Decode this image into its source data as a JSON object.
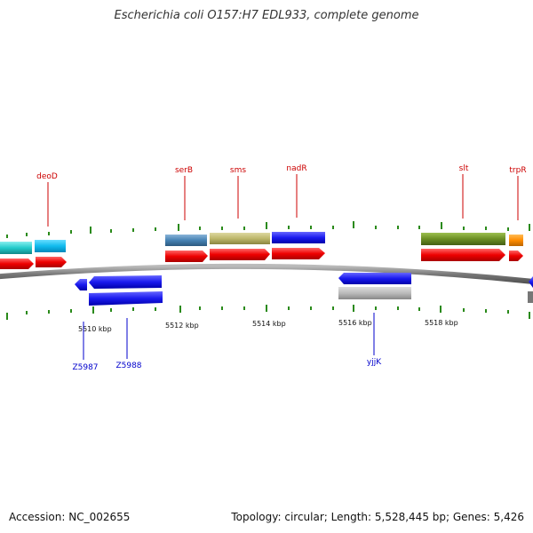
{
  "title": "Escherichia coli O157:H7 EDL933, complete genome",
  "footer": {
    "accession": "Accession: NC_002655",
    "summary": "Topology: circular; Length: 5,528,445 bp; Genes: 5,426"
  },
  "scale_labels": [
    "5510 kbp",
    "5512 kbp",
    "5514 kbp",
    "5516 kbp",
    "5518 kbp"
  ],
  "gene_labels_top": [
    "deoD",
    "serB",
    "sms",
    "nadR",
    "slt",
    "trpR"
  ],
  "gene_labels_bottom": [
    "Z5987",
    "Z5988",
    "yjjK"
  ],
  "colors": {
    "backbone": "#777777",
    "tick": "#2a8a1a",
    "top_label": "#cc0000",
    "bottom_label": "#0000cc",
    "forward_cds": "#ee0000",
    "reverse_cds": "#0000ee",
    "cyan": "#22cccc",
    "steel_blue": "#4682b4",
    "khaki": "#bdb76b",
    "blue": "#1a1aee",
    "olive": "#6b8e23",
    "orange": "#ff8c00",
    "gray": "#bbbbbb"
  }
}
